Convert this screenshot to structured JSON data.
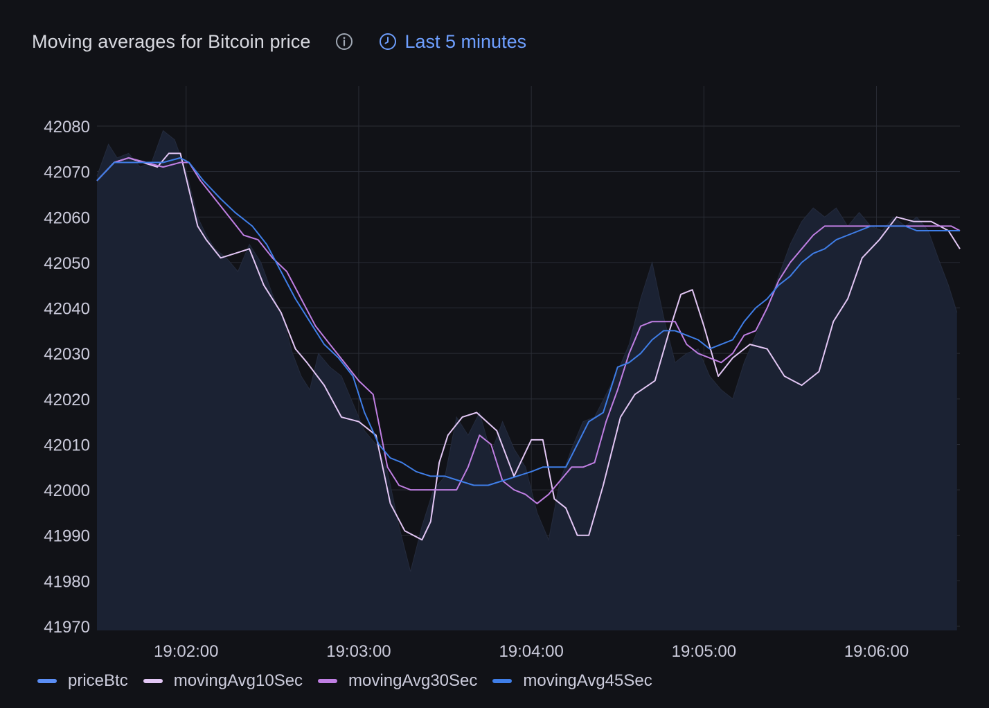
{
  "panel": {
    "title": "Moving averages for Bitcoin price",
    "time_range": "Last 5 minutes",
    "info_icon": "info-icon",
    "time_icon": "clock-icon"
  },
  "colors": {
    "background": "#111217",
    "area_fill": "#1b2233",
    "grid": "#2a2d36",
    "priceBtc": "#5b8ef5",
    "movingAvg10Sec": "#e3c7f5",
    "movingAvg30Sec": "#c07fe3",
    "movingAvg45Sec": "#3f7ee8"
  },
  "chart_data": {
    "type": "line",
    "title": "Moving averages for Bitcoin price",
    "xlabel": "",
    "ylabel": "",
    "xlim": [
      "19:01:29",
      "19:06:29"
    ],
    "ylim": [
      41970,
      42080
    ],
    "x_ticks": [
      "19:02:00",
      "19:03:00",
      "19:04:00",
      "19:05:00",
      "19:06:00"
    ],
    "y_ticks": [
      42080,
      42070,
      42060,
      42050,
      42040,
      42030,
      42020,
      42010,
      42000,
      41990,
      41980,
      41970
    ],
    "grid": true,
    "legend_position": "bottom-left",
    "x_unit": "seconds after 19:00:00",
    "series": [
      {
        "name": "priceBtc",
        "style": "area",
        "x": [
          89,
          93,
          96,
          100,
          104,
          108,
          112,
          116,
          120,
          124,
          127,
          130,
          134,
          138,
          142,
          146,
          150,
          154,
          157,
          160,
          163,
          166,
          170,
          174,
          178,
          182,
          186,
          190,
          194,
          198,
          202,
          206,
          210,
          214,
          218,
          222,
          226,
          230,
          234,
          238,
          242,
          246,
          250,
          254,
          258,
          262,
          266,
          270,
          274,
          278,
          282,
          286,
          290,
          294,
          298,
          302,
          306,
          310,
          314,
          318,
          322,
          326,
          330,
          334,
          338,
          342,
          346,
          350,
          354,
          358,
          362,
          366,
          370,
          374,
          378,
          382,
          385,
          388
        ],
        "values": [
          42069,
          42076,
          42073,
          42074,
          42071,
          42072,
          42079,
          42077,
          42070,
          42060,
          42056,
          42053,
          42051,
          42048,
          42054,
          42050,
          42043,
          42037,
          42030,
          42025,
          42022,
          42030,
          42027,
          42025,
          42019,
          42013,
          42010,
          42004,
          41992,
          41982,
          41992,
          42000,
          42003,
          42016,
          42012,
          42017,
          42008,
          42015,
          42009,
          42005,
          41995,
          41989,
          42002,
          42009,
          42015,
          42016,
          42021,
          42026,
          42032,
          42042,
          42050,
          42038,
          42028,
          42030,
          42031,
          42025,
          42022,
          42020,
          42028,
          42034,
          42040,
          42047,
          42054,
          42059,
          42062,
          42060,
          42062,
          42058,
          42061,
          42058,
          42057,
          42060,
          42058,
          42060,
          42057,
          42050,
          42045,
          42039
        ]
      },
      {
        "name": "movingAvg10Sec",
        "x": [
          89,
          95,
          100,
          105,
          110,
          114,
          118,
          121,
          124,
          127,
          132,
          137,
          142,
          147,
          153,
          158,
          162,
          168,
          174,
          180,
          186,
          191,
          196,
          199,
          202,
          205,
          208,
          211,
          216,
          221,
          228,
          234,
          240,
          244,
          248,
          252,
          256,
          260,
          265,
          271,
          276,
          283,
          288,
          292,
          296,
          300,
          305,
          310,
          316,
          322,
          328,
          334,
          340,
          345,
          350,
          355,
          361,
          367,
          373,
          379,
          385,
          389
        ],
        "values": [
          42068,
          42072,
          42073,
          42072,
          42071,
          42074,
          42074,
          42066,
          42058,
          42055,
          42051,
          42052,
          42053,
          42045,
          42039,
          42031,
          42028,
          42023,
          42016,
          42015,
          42012,
          41997,
          41991,
          41990,
          41989,
          41993,
          42006,
          42012,
          42016,
          42017,
          42013,
          42003,
          42011,
          42011,
          41998,
          41996,
          41990,
          41990,
          42001,
          42016,
          42021,
          42024,
          42035,
          42043,
          42044,
          42036,
          42025,
          42029,
          42032,
          42031,
          42025,
          42023,
          42026,
          42037,
          42042,
          42051,
          42055,
          42060,
          42059,
          42059,
          42057,
          42053
        ]
      },
      {
        "name": "movingAvg30Sec",
        "x": [
          89,
          95,
          100,
          106,
          112,
          118,
          121,
          125,
          130,
          135,
          140,
          145,
          150,
          155,
          160,
          165,
          170,
          175,
          180,
          185,
          190,
          194,
          198,
          202,
          206,
          210,
          214,
          218,
          222,
          226,
          230,
          234,
          238,
          242,
          246,
          250,
          254,
          258,
          262,
          266,
          270,
          274,
          278,
          282,
          286,
          290,
          294,
          298,
          302,
          306,
          310,
          314,
          318,
          322,
          326,
          330,
          334,
          338,
          342,
          346,
          350,
          354,
          358,
          362,
          366,
          370,
          374,
          378,
          382,
          386,
          389
        ],
        "values": [
          42068,
          42072,
          42073,
          42072,
          42071,
          42072,
          42072,
          42068,
          42064,
          42060,
          42056,
          42055,
          42051,
          42048,
          42042,
          42036,
          42032,
          42028,
          42024,
          42021,
          42005,
          42001,
          42000,
          42000,
          42000,
          42000,
          42000,
          42005,
          42012,
          42010,
          42002,
          42000,
          41999,
          41997,
          41999,
          42002,
          42005,
          42005,
          42006,
          42015,
          42022,
          42030,
          42036,
          42037,
          42037,
          42037,
          42032,
          42030,
          42029,
          42028,
          42030,
          42034,
          42035,
          42040,
          42046,
          42050,
          42053,
          42056,
          42058,
          42058,
          42058,
          42058,
          42058,
          42058,
          42058,
          42058,
          42058,
          42058,
          42058,
          42058,
          42057
        ]
      },
      {
        "name": "movingAvg45Sec",
        "x": [
          89,
          95,
          100,
          106,
          112,
          118,
          121,
          126,
          132,
          137,
          143,
          148,
          153,
          158,
          163,
          168,
          173,
          178,
          182,
          187,
          191,
          195,
          200,
          205,
          210,
          215,
          220,
          225,
          230,
          235,
          240,
          244,
          248,
          252,
          256,
          260,
          265,
          270,
          274,
          278,
          282,
          286,
          290,
          294,
          298,
          302,
          306,
          310,
          314,
          318,
          322,
          326,
          330,
          334,
          338,
          342,
          346,
          350,
          354,
          358,
          362,
          366,
          370,
          374,
          378,
          382,
          386,
          389
        ],
        "values": [
          42068,
          42072,
          42072,
          42072,
          42072,
          42073,
          42072,
          42068,
          42064,
          42061,
          42058,
          42054,
          42048,
          42042,
          42037,
          42032,
          42029,
          42025,
          42017,
          42010,
          42007,
          42006,
          42004,
          42003,
          42003,
          42002,
          42001,
          42001,
          42002,
          42003,
          42004,
          42005,
          42005,
          42005,
          42010,
          42015,
          42017,
          42027,
          42028,
          42030,
          42033,
          42035,
          42035,
          42034,
          42033,
          42031,
          42032,
          42033,
          42037,
          42040,
          42042,
          42045,
          42047,
          42050,
          42052,
          42053,
          42055,
          42056,
          42057,
          42058,
          42058,
          42058,
          42058,
          42057,
          42057,
          42057,
          42057,
          42057
        ]
      }
    ]
  }
}
